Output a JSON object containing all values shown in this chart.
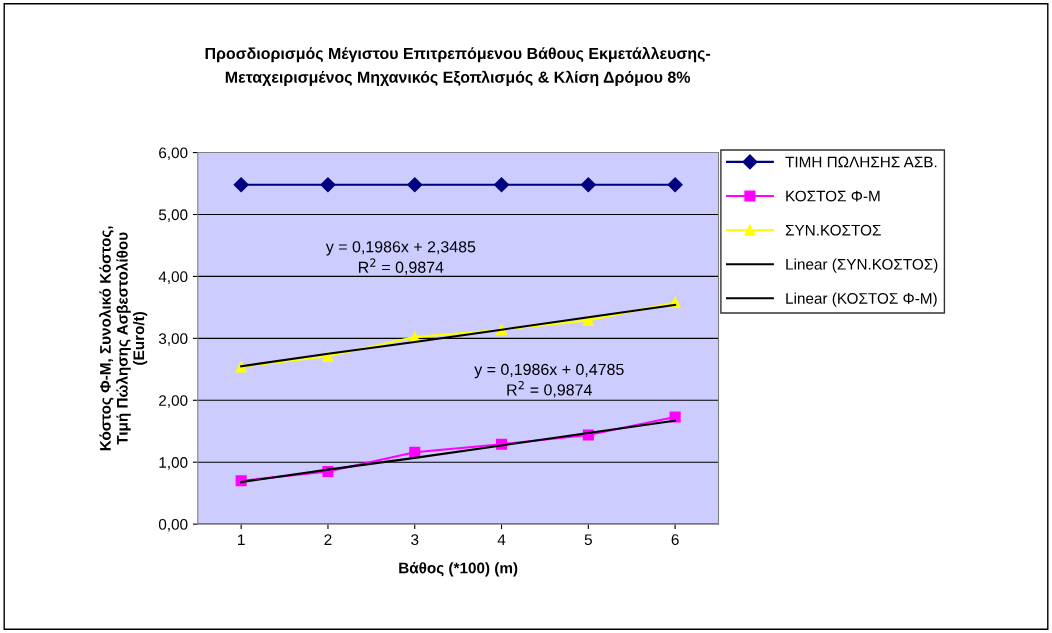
{
  "chart_data": {
    "type": "line",
    "title": "Προσδιορισμός Μέγιστου Επιτρεπόμενου Βάθους Εκμετάλλευσης-\nΜεταχειρισμένος Μηχανικός Εξοπλισμός & Κλίση Δρόμου 8%",
    "xlabel": "Βάθος (*100) (m)",
    "ylabel": "Κόστος Φ-Μ, Συνολικό Κόστος,\nΤιμή Πώλησης Ασβεστολίθου\n(Euro/t)",
    "categories": [
      "1",
      "2",
      "3",
      "4",
      "5",
      "6"
    ],
    "series": [
      {
        "name": "ΤΙΜΗ ΠΩΛΗΣΗΣ ΑΣΒ.",
        "color": "#000080",
        "marker": "diamond",
        "values": [
          5.48,
          5.48,
          5.48,
          5.48,
          5.48,
          5.48
        ]
      },
      {
        "name": "ΚΟΣΤΟΣ Φ-Μ",
        "color": "#ff00ff",
        "marker": "square",
        "values": [
          0.7,
          0.85,
          1.16,
          1.29,
          1.44,
          1.73
        ]
      },
      {
        "name": "ΣΥΝ.ΚΟΣΤΟΣ",
        "color": "#ffff00",
        "marker": "triangle",
        "values": [
          2.54,
          2.71,
          3.02,
          3.14,
          3.29,
          3.58
        ]
      },
      {
        "name": "Linear (ΣΥΝ.ΚΟΣΤΟΣ)",
        "color": "#000000",
        "marker": "none",
        "values": [
          2.55,
          2.75,
          2.94,
          3.14,
          3.34,
          3.54
        ]
      },
      {
        "name": "Linear (ΚΟΣΤΟΣ Φ-Μ)",
        "color": "#000000",
        "marker": "none",
        "values": [
          0.68,
          0.88,
          1.07,
          1.27,
          1.47,
          1.67
        ]
      }
    ],
    "annotations": [
      "y = 0,1986x + 2,3485\nR$^{2}$ = 0,9874",
      "y = 0,1986x + 0,4785\nR$^{2}$ = 0,9874"
    ],
    "ylim": [
      0,
      6
    ],
    "yticks": [
      {
        "value": 0,
        "label": "0,00"
      },
      {
        "value": 1,
        "label": "1,00"
      },
      {
        "value": 2,
        "label": "2,00"
      },
      {
        "value": 3,
        "label": "3,00"
      },
      {
        "value": 4,
        "label": "4,00"
      },
      {
        "value": 5,
        "label": "5,00"
      },
      {
        "value": 6,
        "label": "6,00"
      }
    ],
    "grid": "y",
    "legend": "right"
  }
}
